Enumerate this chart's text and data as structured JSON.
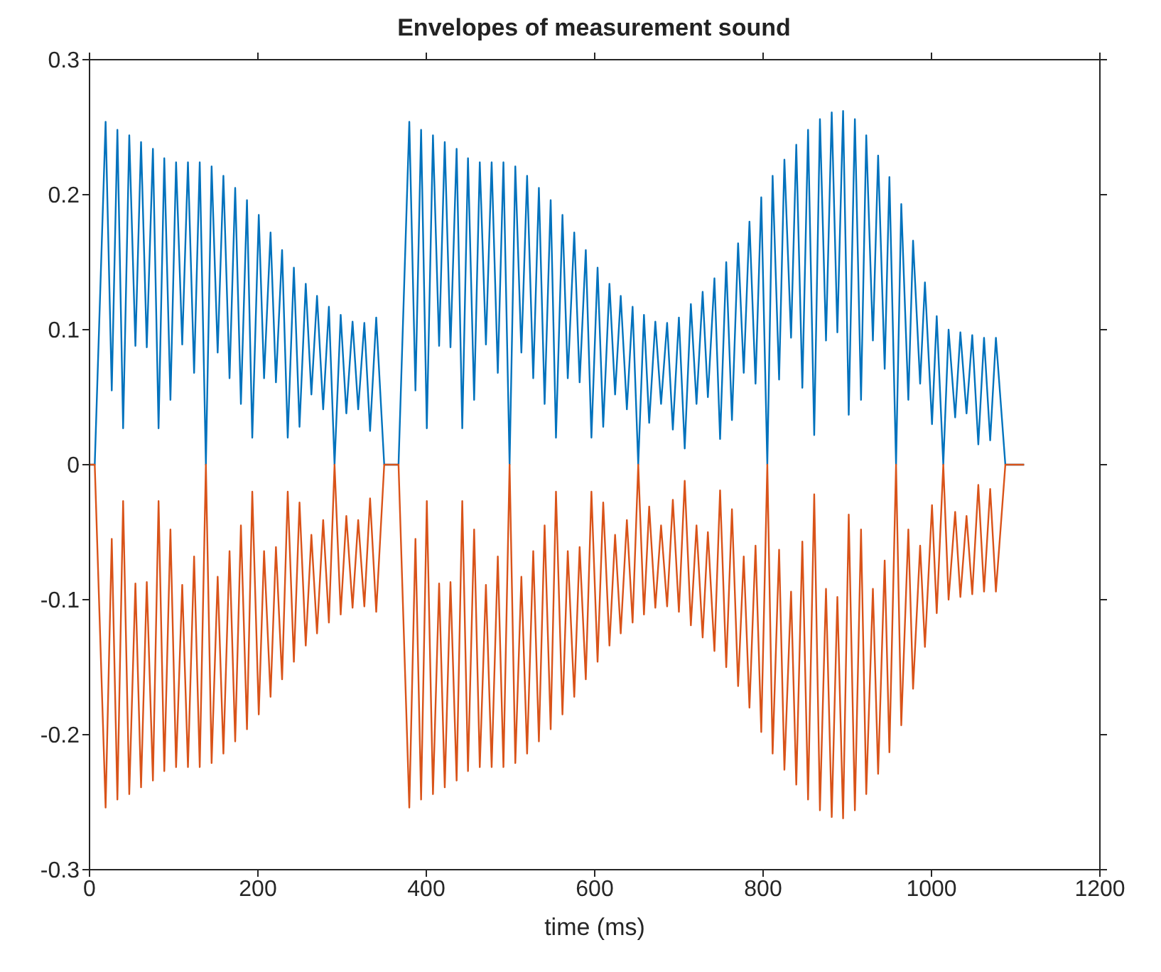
{
  "chart_data": {
    "type": "line",
    "title": "Envelopes of measurement sound",
    "xlabel": "time (ms)",
    "x": [
      0,
      6.2,
      19.1,
      26.4,
      33.1,
      39.9,
      47.2,
      54.5,
      61.2,
      68,
      75.3,
      82,
      88.8,
      96.1,
      102.8,
      110.1,
      116.9,
      124.2,
      130.9,
      138.2,
      145,
      152.2,
      159,
      166.3,
      173,
      179.8,
      187,
      193.3,
      201,
      207.3,
      215,
      221.4,
      228.7,
      235.4,
      242.7,
      249.4,
      256.8,
      263.5,
      270.2,
      277.5,
      284.3,
      291,
      298.3,
      305,
      312.4,
      319.1,
      326.4,
      333.2,
      340.5,
      350,
      367,
      379.8,
      387.1,
      393.8,
      400.6,
      407.9,
      415.2,
      421.9,
      428.7,
      436,
      442.7,
      449.5,
      456.8,
      463.5,
      470.8,
      477.6,
      484.9,
      491.6,
      498.9,
      505.7,
      512.9,
      519.7,
      527,
      533.7,
      540.5,
      547.7,
      554,
      561.7,
      568,
      575.7,
      582.1,
      589.4,
      596.1,
      603.4,
      610.1,
      617.5,
      624.2,
      630.9,
      638.2,
      645,
      651.7,
      658.5,
      664.7,
      672,
      678.8,
      686,
      692.8,
      700,
      706.9,
      714.2,
      720.9,
      728.2,
      734.4,
      742.2,
      748.9,
      756.2,
      763,
      770.3,
      777,
      783.8,
      791,
      797.8,
      805,
      811.3,
      819,
      825.3,
      833.2,
      839.4,
      846.6,
      853.4,
      860.7,
      867.5,
      874.7,
      881.5,
      888.2,
      895,
      901.7,
      909,
      916.3,
      922.5,
      930.4,
      936.6,
      944.4,
      950,
      957.9,
      964.1,
      972.5,
      978.1,
      986.5,
      992.2,
      1000.6,
      1006.2,
      1014,
      1020.3,
      1028.1,
      1034.3,
      1041.6,
      1048.4,
      1055.6,
      1062.4,
      1069.7,
      1076.5,
      1087.7,
      1110
    ],
    "series": [
      {
        "color": "#0072bd",
        "values": [
          0,
          0,
          0.254,
          0.055,
          0.248,
          0.027,
          0.244,
          0.088,
          0.239,
          0.087,
          0.234,
          0.027,
          0.227,
          0.048,
          0.224,
          0.089,
          0.224,
          0.068,
          0.224,
          0,
          0.221,
          0.083,
          0.214,
          0.064,
          0.205,
          0.045,
          0.196,
          0.02,
          0.185,
          0.064,
          0.172,
          0.061,
          0.159,
          0.02,
          0.146,
          0.028,
          0.134,
          0.052,
          0.125,
          0.041,
          0.117,
          0,
          0.111,
          0.038,
          0.106,
          0.041,
          0.105,
          0.025,
          0.109,
          0,
          0,
          0.254,
          0.055,
          0.248,
          0.027,
          0.244,
          0.088,
          0.239,
          0.087,
          0.234,
          0.027,
          0.227,
          0.048,
          0.224,
          0.089,
          0.224,
          0.068,
          0.224,
          0,
          0.221,
          0.083,
          0.214,
          0.064,
          0.205,
          0.045,
          0.196,
          0.02,
          0.185,
          0.064,
          0.172,
          0.061,
          0.159,
          0.02,
          0.146,
          0.028,
          0.134,
          0.052,
          0.125,
          0.041,
          0.117,
          0,
          0.111,
          0.031,
          0.106,
          0.045,
          0.105,
          0.026,
          0.109,
          0.012,
          0.119,
          0.045,
          0.128,
          0.05,
          0.138,
          0.019,
          0.15,
          0.033,
          0.164,
          0.068,
          0.18,
          0.06,
          0.198,
          0,
          0.214,
          0.063,
          0.226,
          0.094,
          0.237,
          0.057,
          0.248,
          0.022,
          0.256,
          0.092,
          0.261,
          0.098,
          0.262,
          0.037,
          0.256,
          0.048,
          0.244,
          0.092,
          0.229,
          0.071,
          0.213,
          0,
          0.193,
          0.048,
          0.166,
          0.06,
          0.135,
          0.03,
          0.11,
          0,
          0.1,
          0.035,
          0.098,
          0.038,
          0.096,
          0.015,
          0.094,
          0.018,
          0.094,
          0,
          0
        ]
      },
      {
        "color": "#d95319",
        "values": [
          0,
          0,
          -0.254,
          -0.055,
          -0.248,
          -0.027,
          -0.244,
          -0.088,
          -0.239,
          -0.087,
          -0.234,
          -0.027,
          -0.227,
          -0.048,
          -0.224,
          -0.089,
          -0.224,
          -0.068,
          -0.224,
          0,
          -0.221,
          -0.083,
          -0.214,
          -0.064,
          -0.205,
          -0.045,
          -0.196,
          -0.02,
          -0.185,
          -0.064,
          -0.172,
          -0.061,
          -0.159,
          -0.02,
          -0.146,
          -0.028,
          -0.134,
          -0.052,
          -0.125,
          -0.041,
          -0.117,
          0,
          -0.111,
          -0.038,
          -0.106,
          -0.041,
          -0.105,
          -0.025,
          -0.109,
          0,
          0,
          -0.254,
          -0.055,
          -0.248,
          -0.027,
          -0.244,
          -0.088,
          -0.239,
          -0.087,
          -0.234,
          -0.027,
          -0.227,
          -0.048,
          -0.224,
          -0.089,
          -0.224,
          -0.068,
          -0.224,
          0,
          -0.221,
          -0.083,
          -0.214,
          -0.064,
          -0.205,
          -0.045,
          -0.196,
          -0.02,
          -0.185,
          -0.064,
          -0.172,
          -0.061,
          -0.159,
          -0.02,
          -0.146,
          -0.028,
          -0.134,
          -0.052,
          -0.125,
          -0.041,
          -0.117,
          0,
          -0.111,
          -0.031,
          -0.106,
          -0.045,
          -0.105,
          -0.026,
          -0.109,
          -0.012,
          -0.119,
          -0.045,
          -0.128,
          -0.05,
          -0.138,
          -0.019,
          -0.15,
          -0.033,
          -0.164,
          -0.068,
          -0.18,
          -0.06,
          -0.198,
          0,
          -0.214,
          -0.063,
          -0.226,
          -0.094,
          -0.237,
          -0.057,
          -0.248,
          -0.022,
          -0.256,
          -0.092,
          -0.261,
          -0.098,
          -0.262,
          -0.037,
          -0.256,
          -0.048,
          -0.244,
          -0.092,
          -0.229,
          -0.071,
          -0.213,
          0,
          -0.193,
          -0.048,
          -0.166,
          -0.06,
          -0.135,
          -0.03,
          -0.11,
          0,
          -0.1,
          -0.035,
          -0.098,
          -0.038,
          -0.096,
          -0.015,
          -0.094,
          -0.018,
          -0.094,
          0,
          0
        ]
      }
    ],
    "xlim": [
      0,
      1200
    ],
    "xticks": [
      0,
      200,
      400,
      600,
      800,
      1000,
      1200
    ],
    "ylim": [
      -0.3,
      0.3
    ],
    "yticks": [
      -0.3,
      -0.2,
      -0.1,
      0,
      0.1,
      0.2,
      0.3
    ]
  }
}
